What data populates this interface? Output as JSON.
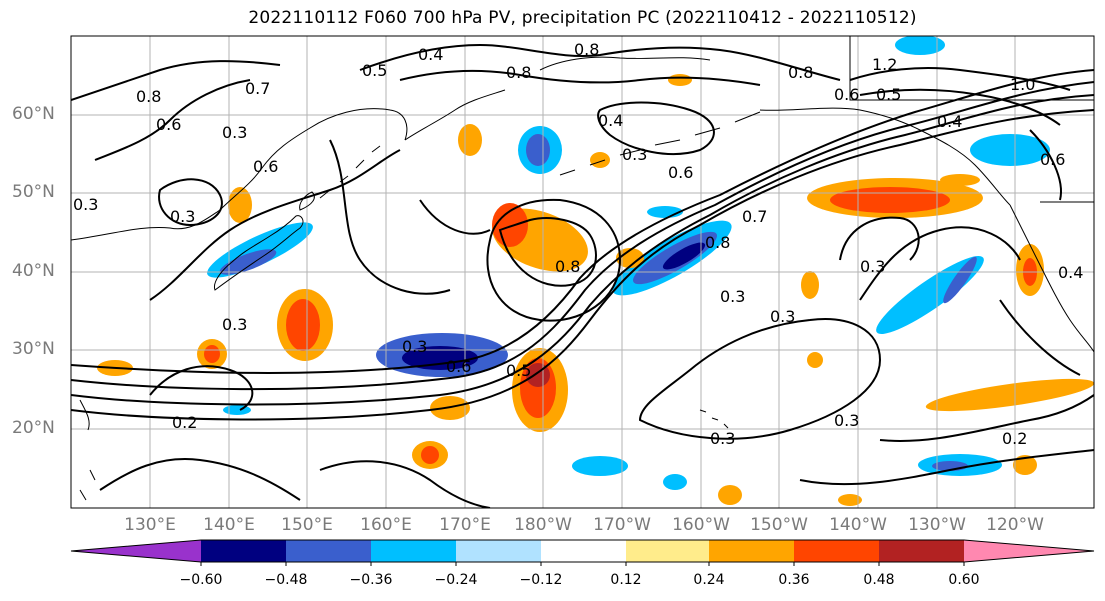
{
  "title": "2022110112 F060 700 hPa PV, precipitation PC (2022110412 - 2022110512)",
  "lat_labels": [
    "60°N",
    "50°N",
    "40°N",
    "30°N",
    "20°N"
  ],
  "lon_labels": [
    "130°E",
    "140°E",
    "150°E",
    "160°E",
    "170°E",
    "180°W",
    "170°W",
    "160°W",
    "150°W",
    "140°W",
    "130°W",
    "120°W"
  ],
  "colorbar": {
    "ticks": [
      "−0.60",
      "−0.48",
      "−0.36",
      "−0.24",
      "−0.12",
      "0.12",
      "0.24",
      "0.36",
      "0.48",
      "0.60"
    ],
    "colors": [
      "#9932cc",
      "#000080",
      "#3a5fcd",
      "#00bfff",
      "#b0e2ff",
      "#ffffff",
      "#ffec8b",
      "#ffa500",
      "#ff4500",
      "#b22222",
      "#ff88b0"
    ]
  },
  "contour_labels": [
    "0.4",
    "0.8",
    "0.5",
    "0.7",
    "0.8",
    "0.8",
    "1.2",
    "0.6",
    "0.5",
    "0.4",
    "1.0",
    "0.6",
    "0.3",
    "0.6",
    "0.3",
    "0.8",
    "0.6",
    "0.4",
    "0.3",
    "0.6",
    "0.3",
    "0.7",
    "0.8",
    "0.8",
    "0.3",
    "0.3",
    "0.3",
    "0.3",
    "0.5",
    "0.6",
    "0.3",
    "0.2",
    "0.3",
    "0.3",
    "0.2",
    "0.4"
  ]
}
